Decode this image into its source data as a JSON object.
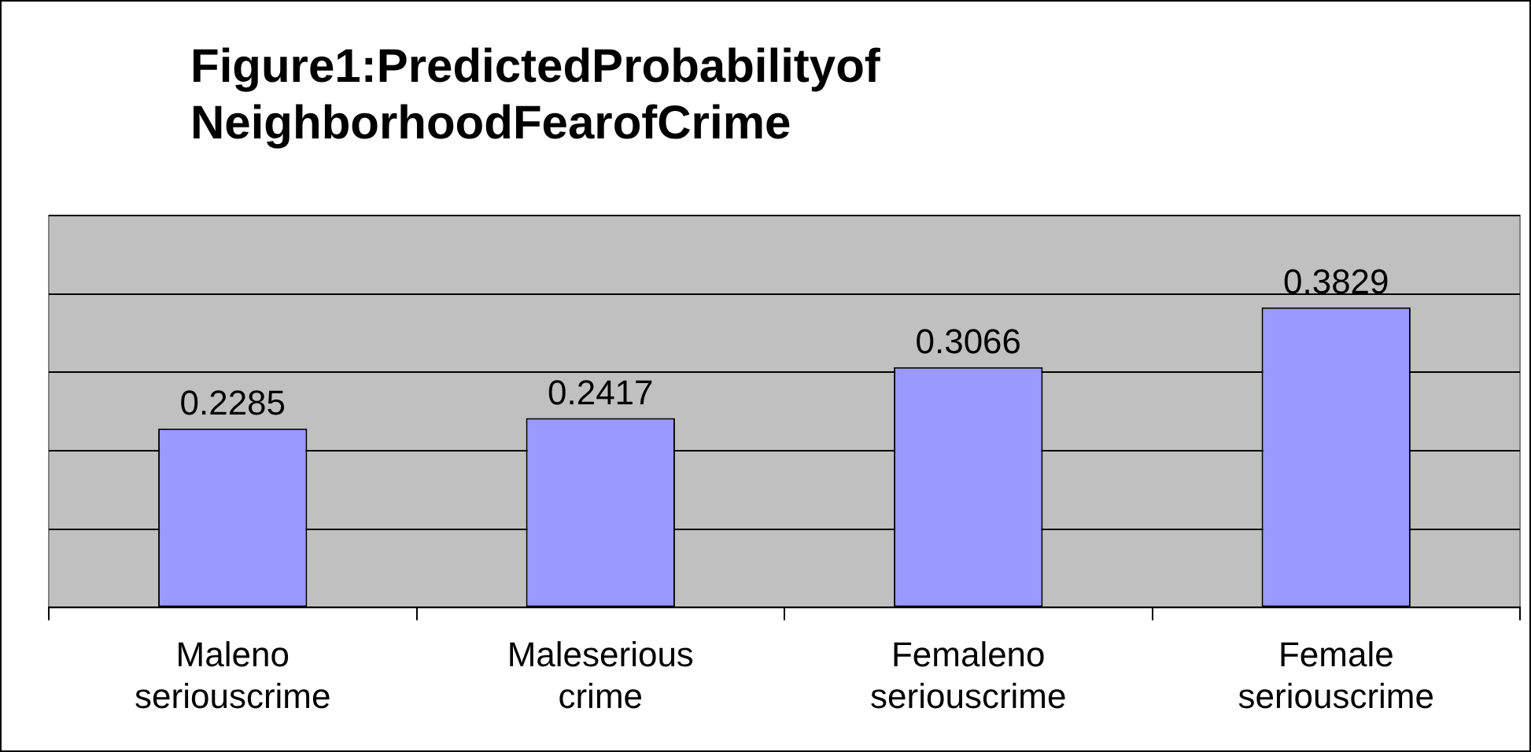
{
  "chart_data": {
    "type": "bar",
    "title": "Figure1:PredictedProbabilityof NeighborhoodFearofCrime",
    "categories": [
      "Maleno seriouscrime",
      "Maleserious crime",
      "Femaleno seriouscrime",
      "Female seriouscrime"
    ],
    "values": [
      0.2285,
      0.2417,
      0.3066,
      0.3829
    ],
    "color": "#9999ff",
    "ylim": [
      0,
      0.5
    ],
    "yticks": [
      {
        "value": 0,
        "label": null
      },
      {
        "value": 0.1,
        "label": null
      },
      {
        "value": 0.2,
        "label": null
      },
      {
        "value": 0.3,
        "label": null
      },
      {
        "value": 0.4,
        "label": null
      },
      {
        "value": 0.5,
        "label": null
      }
    ],
    "grid": "y",
    "tick_labels": "x",
    "data_labels": true,
    "legend": false
  }
}
